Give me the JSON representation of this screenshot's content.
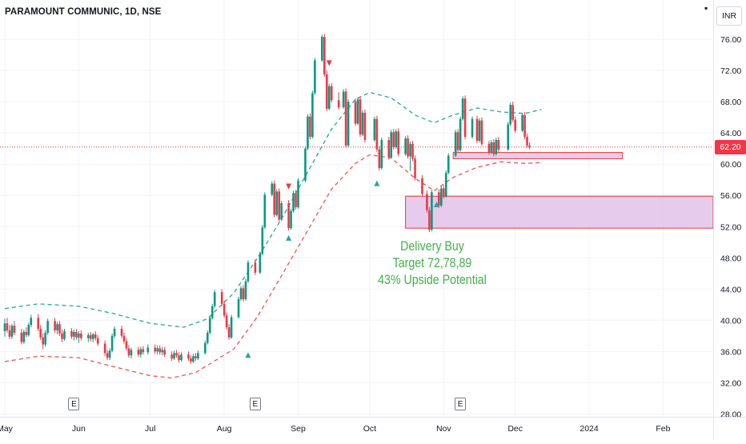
{
  "header": {
    "symbol": "PARAMOUNT COMMUNIC, 1D, NSE",
    "currency": "INR"
  },
  "annotation": {
    "lines": [
      "Delivery Buy",
      "Target 72,78,89",
      "43% Upside Potential"
    ]
  },
  "earnings": {
    "label": "E",
    "dates": [
      "2023-05-30",
      "2023-08-14",
      "2023-11-08"
    ]
  },
  "current_price": {
    "label": "62.20",
    "value": 62.2
  },
  "colors": {
    "up": "#089981",
    "down": "#f23645",
    "upper_envelope": "#26a69a",
    "lower_envelope": "#ef5350",
    "zone_fill": "#e1bee7",
    "zone_border": "#e53935",
    "annotation": "#3fb04a",
    "signal_buy": "#26a69a",
    "signal_sell": "#f23645"
  },
  "chart_data": {
    "type": "candlestick",
    "ylim": [
      26.5,
      79.5
    ],
    "xlim": [
      "2023-05-01",
      "2024-02-22"
    ],
    "y_ticks": [
      "28.00",
      "32.00",
      "36.00",
      "40.00",
      "44.00",
      "48.00",
      "52.00",
      "56.00",
      "60.00",
      "64.00",
      "68.00",
      "72.00",
      "76.00"
    ],
    "x_ticks": [
      {
        "label": "May",
        "date": "2023-05-01"
      },
      {
        "label": "Jun",
        "date": "2023-06-01"
      },
      {
        "label": "Jul",
        "date": "2023-07-01"
      },
      {
        "label": "Aug",
        "date": "2023-08-01"
      },
      {
        "label": "Sep",
        "date": "2023-09-01"
      },
      {
        "label": "Oct",
        "date": "2023-10-01"
      },
      {
        "label": "Nov",
        "date": "2023-11-01"
      },
      {
        "label": "Dec",
        "date": "2023-12-01"
      },
      {
        "label": "2024",
        "date": "2024-01-01"
      },
      {
        "label": "Feb",
        "date": "2024-02-01"
      }
    ],
    "price_line": 62.2,
    "zones": [
      {
        "date_from": "2023-11-05",
        "date_to": "2024-01-15",
        "low": 60.7,
        "high": 61.5
      },
      {
        "date_from": "2023-10-16",
        "date_to": "2024-02-22",
        "low": 51.8,
        "high": 55.9
      }
    ],
    "upper_envelope": [
      [
        "2023-05-01",
        41.5
      ],
      [
        "2023-05-15",
        42.1
      ],
      [
        "2023-06-01",
        41.8
      ],
      [
        "2023-06-15",
        40.9
      ],
      [
        "2023-07-01",
        39.6
      ],
      [
        "2023-07-15",
        39.1
      ],
      [
        "2023-07-25",
        40.2
      ],
      [
        "2023-08-05",
        43.5
      ],
      [
        "2023-08-15",
        48.0
      ],
      [
        "2023-08-25",
        53.0
      ],
      [
        "2023-09-05",
        59.0
      ],
      [
        "2023-09-15",
        64.5
      ],
      [
        "2023-09-25",
        68.3
      ],
      [
        "2023-10-01",
        69.2
      ],
      [
        "2023-10-10",
        68.5
      ],
      [
        "2023-10-20",
        66.3
      ],
      [
        "2023-10-28",
        65.3
      ],
      [
        "2023-11-05",
        66.3
      ],
      [
        "2023-11-15",
        67.2
      ],
      [
        "2023-11-25",
        66.7
      ],
      [
        "2023-12-05",
        66.5
      ],
      [
        "2023-12-12",
        67.0
      ]
    ],
    "lower_envelope": [
      [
        "2023-05-01",
        34.7
      ],
      [
        "2023-05-15",
        35.4
      ],
      [
        "2023-06-01",
        35.2
      ],
      [
        "2023-06-15",
        34.1
      ],
      [
        "2023-07-01",
        32.9
      ],
      [
        "2023-07-10",
        32.6
      ],
      [
        "2023-07-20",
        33.3
      ],
      [
        "2023-08-05",
        36.3
      ],
      [
        "2023-08-15",
        40.5
      ],
      [
        "2023-08-25",
        45.7
      ],
      [
        "2023-09-05",
        51.5
      ],
      [
        "2023-09-15",
        56.8
      ],
      [
        "2023-09-25",
        60.1
      ],
      [
        "2023-10-01",
        61.2
      ],
      [
        "2023-10-10",
        60.8
      ],
      [
        "2023-10-20",
        58.2
      ],
      [
        "2023-10-28",
        56.6
      ],
      [
        "2023-11-05",
        58.3
      ],
      [
        "2023-11-15",
        59.6
      ],
      [
        "2023-11-25",
        60.3
      ],
      [
        "2023-12-05",
        60.1
      ],
      [
        "2023-12-12",
        60.2
      ]
    ],
    "buy_signals": [
      {
        "date": "2023-08-11",
        "price": 35.5
      },
      {
        "date": "2023-08-28",
        "price": 50.5
      },
      {
        "date": "2023-10-04",
        "price": 57.5
      },
      {
        "date": "2023-10-29",
        "price": 54.8
      }
    ],
    "sell_signals": [
      {
        "date": "2023-08-28",
        "price": 57.2
      },
      {
        "date": "2023-09-14",
        "price": 73.0
      }
    ],
    "candles": [
      [
        "2023-05-01",
        38.6,
        40.2,
        37.9,
        39.6
      ],
      [
        "2023-05-02",
        39.6,
        40.3,
        38.4,
        38.7
      ],
      [
        "2023-05-03",
        38.7,
        39.4,
        37.6,
        37.9
      ],
      [
        "2023-05-04",
        37.9,
        39.5,
        37.6,
        39.3
      ],
      [
        "2023-05-05",
        39.3,
        39.9,
        38.1,
        38.4
      ],
      [
        "2023-05-08",
        38.4,
        38.9,
        36.9,
        37.2
      ],
      [
        "2023-05-09",
        37.2,
        38.8,
        37.0,
        38.5
      ],
      [
        "2023-05-10",
        38.5,
        39.1,
        37.8,
        38.1
      ],
      [
        "2023-05-11",
        38.1,
        39.7,
        37.9,
        39.4
      ],
      [
        "2023-05-12",
        39.4,
        40.7,
        39.1,
        40.3
      ],
      [
        "2023-05-15",
        40.3,
        40.8,
        38.6,
        38.9
      ],
      [
        "2023-05-16",
        38.9,
        39.4,
        37.5,
        37.8
      ],
      [
        "2023-05-17",
        37.8,
        38.3,
        36.3,
        36.9
      ],
      [
        "2023-05-18",
        36.9,
        38.7,
        36.6,
        38.4
      ],
      [
        "2023-05-19",
        38.4,
        40.2,
        38.1,
        39.9
      ],
      [
        "2023-05-22",
        39.9,
        40.3,
        38.4,
        38.7
      ],
      [
        "2023-05-23",
        38.7,
        39.8,
        38.2,
        39.5
      ],
      [
        "2023-05-24",
        39.5,
        39.9,
        38.0,
        38.3
      ],
      [
        "2023-05-25",
        38.3,
        38.8,
        37.2,
        37.6
      ],
      [
        "2023-05-26",
        37.6,
        38.9,
        37.4,
        38.6
      ],
      [
        "2023-05-29",
        38.6,
        39.0,
        37.6,
        37.9
      ],
      [
        "2023-05-30",
        37.9,
        38.8,
        37.4,
        38.5
      ],
      [
        "2023-05-31",
        38.5,
        38.9,
        37.5,
        37.8
      ],
      [
        "2023-06-01",
        37.8,
        38.6,
        37.1,
        38.3
      ],
      [
        "2023-06-02",
        38.3,
        38.7,
        37.4,
        37.7
      ],
      [
        "2023-06-05",
        37.7,
        38.4,
        37.2,
        38.1
      ],
      [
        "2023-06-06",
        38.1,
        38.5,
        37.3,
        37.6
      ],
      [
        "2023-06-07",
        37.6,
        38.4,
        37.2,
        38.2
      ],
      [
        "2023-06-08",
        38.2,
        38.6,
        37.4,
        37.7
      ],
      [
        "2023-06-09",
        37.7,
        38.1,
        36.7,
        37.0
      ],
      [
        "2023-06-12",
        37.0,
        37.4,
        35.4,
        35.8
      ],
      [
        "2023-06-13",
        35.8,
        36.2,
        34.9,
        35.2
      ],
      [
        "2023-06-14",
        35.2,
        36.4,
        34.9,
        36.1
      ],
      [
        "2023-06-15",
        36.1,
        38.3,
        35.9,
        38.0
      ],
      [
        "2023-06-16",
        38.0,
        39.2,
        37.7,
        38.9
      ],
      [
        "2023-06-19",
        38.9,
        39.3,
        37.7,
        38.0
      ],
      [
        "2023-06-20",
        38.0,
        38.4,
        37.0,
        37.3
      ],
      [
        "2023-06-21",
        37.3,
        37.7,
        36.1,
        36.4
      ],
      [
        "2023-06-22",
        36.4,
        36.8,
        35.2,
        35.5
      ],
      [
        "2023-06-23",
        35.5,
        36.5,
        35.1,
        36.2
      ],
      [
        "2023-06-26",
        36.2,
        36.6,
        35.3,
        35.6
      ],
      [
        "2023-06-27",
        35.6,
        36.6,
        35.2,
        36.3
      ],
      [
        "2023-06-28",
        36.3,
        36.7,
        35.6,
        35.9
      ],
      [
        "2023-06-30",
        35.9,
        36.9,
        35.6,
        36.5
      ],
      [
        "2023-07-03",
        36.5,
        36.9,
        35.7,
        36.0
      ],
      [
        "2023-07-04",
        36.0,
        36.8,
        35.6,
        36.4
      ],
      [
        "2023-07-05",
        36.4,
        36.8,
        35.6,
        35.9
      ],
      [
        "2023-07-06",
        35.9,
        36.6,
        35.5,
        36.2
      ],
      [
        "2023-07-07",
        36.2,
        36.6,
        35.3,
        35.6
      ],
      [
        "2023-07-10",
        35.6,
        36.0,
        34.8,
        35.1
      ],
      [
        "2023-07-11",
        35.1,
        36.1,
        34.9,
        35.8
      ],
      [
        "2023-07-12",
        35.8,
        36.2,
        35.2,
        35.5
      ],
      [
        "2023-07-13",
        35.5,
        35.9,
        34.6,
        34.9
      ],
      [
        "2023-07-14",
        34.9,
        35.9,
        34.7,
        35.6
      ],
      [
        "2023-07-17",
        35.6,
        36.0,
        34.8,
        35.1
      ],
      [
        "2023-07-18",
        35.1,
        35.5,
        34.4,
        34.7
      ],
      [
        "2023-07-19",
        34.7,
        35.7,
        34.5,
        35.4
      ],
      [
        "2023-07-20",
        35.4,
        35.8,
        34.8,
        35.1
      ],
      [
        "2023-07-21",
        35.1,
        36.1,
        34.9,
        35.8
      ],
      [
        "2023-07-24",
        35.8,
        37.4,
        35.6,
        37.1
      ],
      [
        "2023-07-25",
        37.1,
        38.7,
        36.9,
        38.4
      ],
      [
        "2023-07-26",
        38.4,
        40.6,
        38.2,
        40.3
      ],
      [
        "2023-07-27",
        40.3,
        42.1,
        40.1,
        41.8
      ],
      [
        "2023-07-28",
        41.8,
        43.9,
        41.6,
        43.6
      ],
      [
        "2023-07-31",
        43.6,
        44.0,
        41.8,
        42.1
      ],
      [
        "2023-08-01",
        42.1,
        42.5,
        40.3,
        40.6
      ],
      [
        "2023-08-02",
        40.6,
        41.0,
        38.8,
        39.1
      ],
      [
        "2023-08-03",
        39.1,
        39.5,
        37.5,
        37.8
      ],
      [
        "2023-08-04",
        37.8,
        40.7,
        37.6,
        40.4
      ],
      [
        "2023-08-07",
        40.4,
        43.0,
        40.2,
        42.7
      ],
      [
        "2023-08-08",
        42.7,
        44.4,
        42.5,
        44.1
      ],
      [
        "2023-08-09",
        44.1,
        44.5,
        42.4,
        42.7
      ],
      [
        "2023-08-10",
        42.7,
        45.3,
        42.5,
        45.0
      ],
      [
        "2023-08-11",
        45.0,
        47.7,
        44.8,
        47.4
      ],
      [
        "2023-08-14",
        47.4,
        47.8,
        45.8,
        46.1
      ],
      [
        "2023-08-16",
        46.1,
        48.8,
        45.9,
        48.5
      ],
      [
        "2023-08-17",
        48.5,
        52.2,
        48.3,
        51.9
      ],
      [
        "2023-08-18",
        51.9,
        56.4,
        51.7,
        56.1
      ],
      [
        "2023-08-21",
        56.1,
        57.8,
        55.9,
        57.5
      ],
      [
        "2023-08-22",
        57.5,
        57.9,
        53.2,
        53.5
      ],
      [
        "2023-08-23",
        53.5,
        56.8,
        53.3,
        56.5
      ],
      [
        "2023-08-24",
        56.5,
        56.9,
        52.6,
        52.9
      ],
      [
        "2023-08-25",
        52.9,
        55.3,
        52.7,
        55.0
      ],
      [
        "2023-08-28",
        55.0,
        55.4,
        51.5,
        51.8
      ],
      [
        "2023-08-29",
        51.8,
        54.3,
        51.6,
        54.0
      ],
      [
        "2023-08-30",
        54.0,
        56.6,
        53.8,
        56.3
      ],
      [
        "2023-08-31",
        56.3,
        56.7,
        54.2,
        54.5
      ],
      [
        "2023-09-01",
        54.5,
        58.2,
        54.3,
        57.9
      ],
      [
        "2023-09-04",
        57.9,
        62.3,
        57.7,
        62.0
      ],
      [
        "2023-09-05",
        62.0,
        66.4,
        61.8,
        66.1
      ],
      [
        "2023-09-06",
        66.1,
        66.5,
        63.2,
        63.5
      ],
      [
        "2023-09-07",
        63.5,
        69.4,
        63.3,
        69.1
      ],
      [
        "2023-09-08",
        69.1,
        73.6,
        68.9,
        73.3
      ],
      [
        "2023-09-11",
        73.3,
        76.6,
        73.1,
        76.3
      ],
      [
        "2023-09-12",
        76.3,
        76.7,
        71.2,
        71.5
      ],
      [
        "2023-09-13",
        71.5,
        72.0,
        66.8,
        67.1
      ],
      [
        "2023-09-14",
        67.1,
        70.3,
        66.9,
        70.0
      ],
      [
        "2023-09-15",
        70.0,
        70.4,
        67.9,
        68.2
      ],
      [
        "2023-09-18",
        68.2,
        69.2,
        67.0,
        67.3
      ],
      [
        "2023-09-20",
        67.3,
        69.6,
        67.1,
        69.3
      ],
      [
        "2023-09-21",
        69.3,
        69.7,
        62.1,
        62.4
      ],
      [
        "2023-09-22",
        62.4,
        68.3,
        62.2,
        68.0
      ],
      [
        "2023-09-25",
        68.0,
        68.4,
        64.9,
        65.2
      ],
      [
        "2023-09-26",
        65.2,
        68.6,
        65.0,
        68.3
      ],
      [
        "2023-09-27",
        68.3,
        68.7,
        63.5,
        63.8
      ],
      [
        "2023-09-28",
        63.8,
        66.9,
        63.6,
        66.6
      ],
      [
        "2023-09-29",
        66.6,
        67.0,
        62.8,
        63.1
      ],
      [
        "2023-10-03",
        63.1,
        66.1,
        62.9,
        65.8
      ],
      [
        "2023-10-04",
        65.8,
        66.2,
        61.6,
        61.9
      ],
      [
        "2023-10-05",
        61.9,
        62.3,
        59.2,
        59.5
      ],
      [
        "2023-10-06",
        59.5,
        63.4,
        59.3,
        63.1
      ],
      [
        "2023-10-09",
        63.1,
        63.5,
        60.6,
        60.9
      ],
      [
        "2023-10-10",
        60.9,
        64.4,
        60.7,
        64.1
      ],
      [
        "2023-10-11",
        64.1,
        64.5,
        61.9,
        62.2
      ],
      [
        "2023-10-12",
        62.2,
        64.5,
        62.0,
        64.2
      ],
      [
        "2023-10-13",
        64.2,
        64.6,
        61.0,
        61.3
      ],
      [
        "2023-10-16",
        61.3,
        63.6,
        61.1,
        63.3
      ],
      [
        "2023-10-17",
        63.3,
        63.7,
        60.7,
        61.0
      ],
      [
        "2023-10-18",
        61.0,
        62.9,
        59.1,
        62.6
      ],
      [
        "2023-10-19",
        62.6,
        63.0,
        60.4,
        60.7
      ],
      [
        "2023-10-20",
        60.7,
        61.1,
        57.9,
        58.2
      ],
      [
        "2023-10-23",
        58.2,
        58.6,
        55.9,
        56.2
      ],
      [
        "2023-10-25",
        56.2,
        56.6,
        53.8,
        54.1
      ],
      [
        "2023-10-26",
        54.1,
        54.5,
        51.3,
        51.6
      ],
      [
        "2023-10-27",
        51.6,
        56.7,
        51.4,
        56.4
      ],
      [
        "2023-10-30",
        56.4,
        56.8,
        54.4,
        54.7
      ],
      [
        "2023-10-31",
        54.7,
        57.2,
        54.5,
        56.9
      ],
      [
        "2023-11-01",
        56.9,
        57.3,
        55.6,
        55.9
      ],
      [
        "2023-11-02",
        55.9,
        59.2,
        55.7,
        58.9
      ],
      [
        "2023-11-03",
        58.9,
        61.4,
        58.7,
        61.1
      ],
      [
        "2023-11-06",
        61.1,
        64.4,
        60.9,
        64.1
      ],
      [
        "2023-11-07",
        64.1,
        64.5,
        61.5,
        61.8
      ],
      [
        "2023-11-08",
        61.8,
        66.1,
        61.6,
        65.8
      ],
      [
        "2023-11-09",
        65.8,
        68.7,
        65.6,
        68.4
      ],
      [
        "2023-11-10",
        68.4,
        68.8,
        63.2,
        63.5
      ],
      [
        "2023-11-13",
        63.5,
        66.1,
        63.3,
        65.8
      ],
      [
        "2023-11-15",
        65.8,
        66.2,
        62.7,
        63.0
      ],
      [
        "2023-11-16",
        63.0,
        65.9,
        62.8,
        65.6
      ],
      [
        "2023-11-17",
        65.6,
        66.0,
        62.3,
        62.6
      ],
      [
        "2023-11-20",
        62.6,
        63.0,
        61.2,
        61.5
      ],
      [
        "2023-11-21",
        61.5,
        63.1,
        61.3,
        62.8
      ],
      [
        "2023-11-22",
        62.8,
        63.2,
        61.0,
        61.3
      ],
      [
        "2023-11-23",
        61.3,
        63.4,
        61.1,
        63.1
      ],
      [
        "2023-11-24",
        63.1,
        63.5,
        61.6,
        61.9
      ],
      [
        "2023-11-28",
        61.9,
        65.4,
        61.7,
        65.1
      ],
      [
        "2023-11-29",
        65.1,
        67.9,
        64.9,
        67.6
      ],
      [
        "2023-11-30",
        67.6,
        68.0,
        65.4,
        65.7
      ],
      [
        "2023-12-01",
        65.7,
        66.1,
        64.0,
        64.3
      ],
      [
        "2023-12-04",
        64.3,
        66.6,
        64.1,
        66.3
      ],
      [
        "2023-12-05",
        66.3,
        66.7,
        63.2,
        63.5
      ],
      [
        "2023-12-06",
        63.5,
        63.9,
        62.1,
        62.4
      ],
      [
        "2023-12-07",
        62.4,
        62.8,
        61.9,
        62.2
      ]
    ]
  }
}
